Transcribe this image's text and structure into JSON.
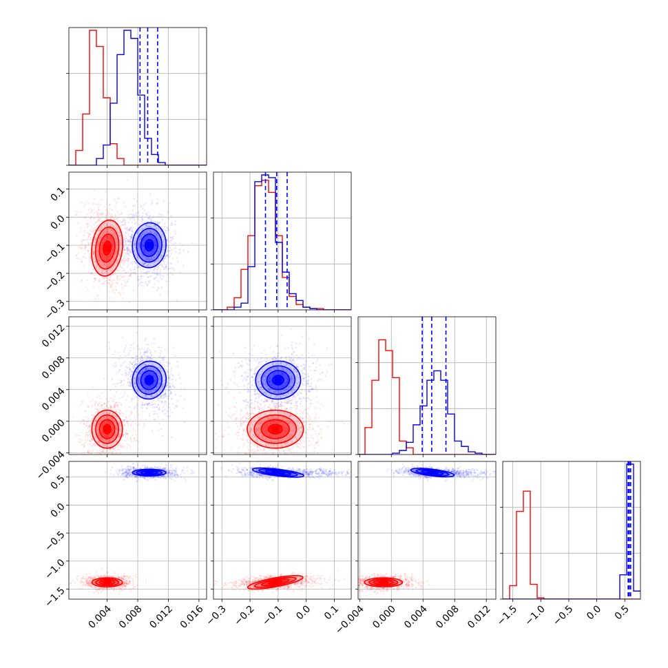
{
  "colors": {
    "red": "#ff0000",
    "blue": "#0000ff",
    "grid": "#b0b0b0"
  },
  "chart_data": {
    "type": "corner",
    "grid": true,
    "series": [
      {
        "color": "#ff0000",
        "means": [
          0.004,
          -0.11,
          -0.001,
          -1.38
        ],
        "sds": [
          0.001,
          0.05,
          0.0012,
          0.04
        ]
      },
      {
        "color": "#0000ff",
        "means": [
          0.0095,
          -0.1,
          0.0052,
          0.58
        ],
        "sds": [
          0.0011,
          0.04,
          0.0012,
          0.03
        ]
      }
    ],
    "parameters": [
      {
        "range": [
          -0.001,
          0.017
        ],
        "ticks": [
          0.004,
          0.008,
          0.012,
          0.016
        ],
        "tick_labels": [
          "0.004",
          "0.008",
          "0.012",
          "0.016"
        ]
      },
      {
        "range": [
          -0.33,
          0.16
        ],
        "ticks": [
          -0.3,
          -0.2,
          -0.1,
          0.0,
          0.1
        ],
        "tick_labels": [
          "−0.3",
          "−0.2",
          "−0.1",
          "0.0",
          "0.1"
        ]
      },
      {
        "range": [
          -0.0042,
          0.0132
        ],
        "ticks": [
          -0.004,
          0.0,
          0.004,
          0.008,
          0.012
        ],
        "tick_labels": [
          "−0.004",
          "0.000",
          "0.004",
          "0.008",
          "0.012"
        ]
      },
      {
        "range": [
          -1.68,
          0.78
        ],
        "ticks": [
          -1.5,
          -1.0,
          -0.5,
          0.0,
          0.5
        ],
        "tick_labels": [
          "−1.5",
          "−1.0",
          "−0.5",
          "0.0",
          "0.5"
        ]
      }
    ],
    "quantile_lines": [
      [
        0.0083,
        0.0093,
        0.0106
      ],
      [
        -0.145,
        -0.105,
        -0.068
      ],
      [
        0.0039,
        0.0051,
        0.0069
      ],
      [
        0.56,
        0.58,
        0.605
      ]
    ],
    "histograms": [
      {
        "red": [
          0,
          0.11,
          0.38,
          1.0,
          0.88,
          0.5,
          0.16,
          0.05,
          0,
          0,
          0,
          0,
          0,
          0,
          0,
          0,
          0,
          0,
          0,
          0
        ],
        "blue": [
          0,
          0,
          0,
          0,
          0.05,
          0.15,
          0.46,
          0.82,
          1.0,
          0.94,
          0.52,
          0.2,
          0.08,
          0.02,
          0,
          0,
          0,
          0,
          0,
          0
        ]
      },
      {
        "red": [
          0,
          0,
          0.02,
          0.09,
          0.3,
          0.55,
          0.92,
          0.96,
          0.87,
          0.55,
          0.24,
          0.1,
          0.04,
          0.02,
          0.01,
          0.01,
          0,
          0,
          0,
          0
        ],
        "blue": [
          0,
          0,
          0,
          0.02,
          0.05,
          0.32,
          0.95,
          1.0,
          0.98,
          0.5,
          0.28,
          0.12,
          0.07,
          0.02,
          0.01,
          0,
          0,
          0,
          0,
          0
        ]
      },
      {
        "red": [
          0.0,
          0.2,
          0.55,
          0.85,
          0.77,
          0.57,
          0.1,
          0.05,
          0,
          0,
          0,
          0,
          0,
          0,
          0,
          0,
          0,
          0,
          0,
          0
        ],
        "blue": [
          0,
          0,
          0,
          0,
          0,
          0.01,
          0.03,
          0.09,
          0.22,
          0.36,
          0.55,
          0.62,
          0.55,
          0.3,
          0.1,
          0.06,
          0.02,
          0.01,
          0,
          0
        ]
      },
      {
        "red": [
          0.0,
          0.1,
          0.65,
          0.8,
          0.11,
          0.01,
          0,
          0,
          0,
          0,
          0,
          0,
          0,
          0,
          0,
          0,
          0,
          0,
          0,
          0
        ],
        "blue": [
          0,
          0,
          0,
          0,
          0,
          0,
          0,
          0,
          0,
          0,
          0,
          0,
          0,
          0,
          0,
          0,
          0,
          0.18,
          1.0,
          0.06
        ]
      }
    ],
    "pairs": [
      {
        "row": 1,
        "col": 0,
        "red_corr": -0.2,
        "blue_corr": -0.1,
        "red_tail": 0,
        "blue_tail": 0
      },
      {
        "row": 2,
        "col": 0,
        "red_corr": 0.0,
        "blue_corr": -0.3,
        "red_tail": 0,
        "blue_tail": 0
      },
      {
        "row": 2,
        "col": 1,
        "red_corr": 0.0,
        "blue_corr": 0.1,
        "red_tail": 0,
        "blue_tail": 0
      },
      {
        "row": 3,
        "col": 0,
        "red_corr": 0.0,
        "blue_corr": 0.0,
        "red_tail": 0,
        "blue_tail": 0
      },
      {
        "row": 3,
        "col": 1,
        "red_corr": 0.3,
        "blue_corr": -0.2,
        "red_tail": 0,
        "blue_tail": 1
      },
      {
        "row": 3,
        "col": 2,
        "red_corr": 0.0,
        "blue_corr": -0.2,
        "red_tail": 0,
        "blue_tail": 1
      }
    ]
  }
}
